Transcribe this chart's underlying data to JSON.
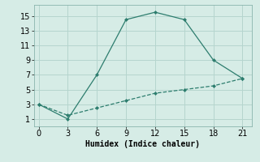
{
  "line1_x": [
    0,
    3,
    6,
    9,
    12,
    15,
    18,
    21
  ],
  "line1_y": [
    3,
    1,
    7,
    14.5,
    15.5,
    14.5,
    9,
    6.5
  ],
  "line2_x": [
    0,
    3,
    6,
    9,
    12,
    15,
    18,
    21
  ],
  "line2_y": [
    3,
    1.5,
    2.5,
    3.5,
    4.5,
    5.0,
    5.5,
    6.5
  ],
  "line_color": "#2d7d6e",
  "bg_color": "#d6ece6",
  "grid_color": "#b5d5ce",
  "xlabel": "Humidex (Indice chaleur)",
  "xlabel_fontsize": 7,
  "xlim": [
    -0.5,
    22
  ],
  "ylim": [
    0,
    16.5
  ],
  "xticks": [
    0,
    3,
    6,
    9,
    12,
    15,
    18,
    21
  ],
  "yticks": [
    1,
    3,
    5,
    7,
    9,
    11,
    13,
    15
  ],
  "tick_fontsize": 7
}
